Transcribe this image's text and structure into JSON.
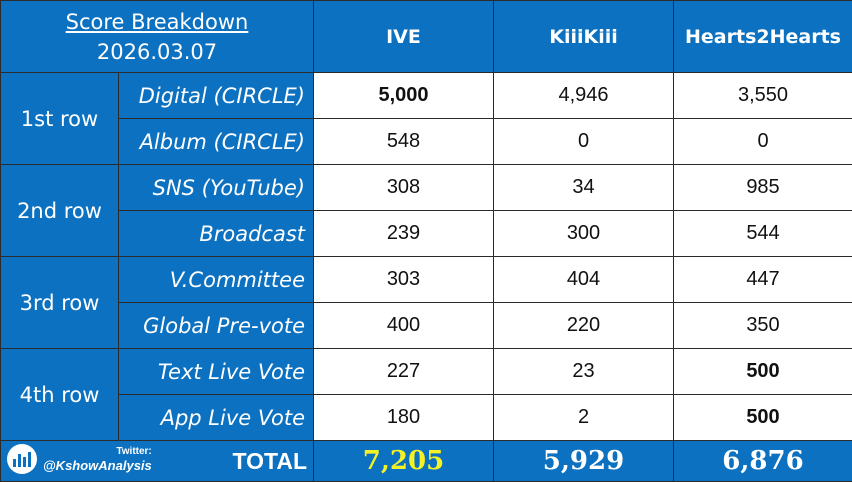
{
  "header": {
    "title": "Score Breakdown",
    "date": "2026.03.07",
    "contestants": [
      "IVE",
      "KiiiKiii",
      "Hearts2Hearts"
    ]
  },
  "groups": [
    {
      "label": "1st row",
      "rows": [
        {
          "category": "Digital (CIRCLE)",
          "values": [
            "5,000",
            "4,946",
            "3,550"
          ],
          "bold": [
            true,
            false,
            false
          ]
        },
        {
          "category": "Album (CIRCLE)",
          "values": [
            "548",
            "0",
            "0"
          ],
          "bold": [
            false,
            false,
            false
          ]
        }
      ]
    },
    {
      "label": "2nd row",
      "rows": [
        {
          "category": "SNS (YouTube)",
          "values": [
            "308",
            "34",
            "985"
          ],
          "bold": [
            false,
            false,
            false
          ]
        },
        {
          "category": "Broadcast",
          "values": [
            "239",
            "300",
            "544"
          ],
          "bold": [
            false,
            false,
            false
          ]
        }
      ]
    },
    {
      "label": "3rd row",
      "rows": [
        {
          "category": "V.Committee",
          "values": [
            "303",
            "404",
            "447"
          ],
          "bold": [
            false,
            false,
            false
          ]
        },
        {
          "category": "Global Pre-vote",
          "values": [
            "400",
            "220",
            "350"
          ],
          "bold": [
            false,
            false,
            false
          ]
        }
      ]
    },
    {
      "label": "4th row",
      "rows": [
        {
          "category": "Text Live Vote",
          "values": [
            "227",
            "23",
            "500"
          ],
          "bold": [
            false,
            false,
            true
          ]
        },
        {
          "category": "App Live Vote",
          "values": [
            "180",
            "2",
            "500"
          ],
          "bold": [
            false,
            false,
            true
          ]
        }
      ]
    }
  ],
  "total": {
    "label": "TOTAL",
    "values": [
      "7,205",
      "5,929",
      "6,876"
    ],
    "highlight_color": "#f4f227"
  },
  "badge": {
    "small_text": "Twitter:",
    "handle": "@KshowAnalysis",
    "icon": "bar-chart-icon"
  },
  "colors": {
    "header_blue": "#0b71c0",
    "border": "#2b2b2b"
  }
}
